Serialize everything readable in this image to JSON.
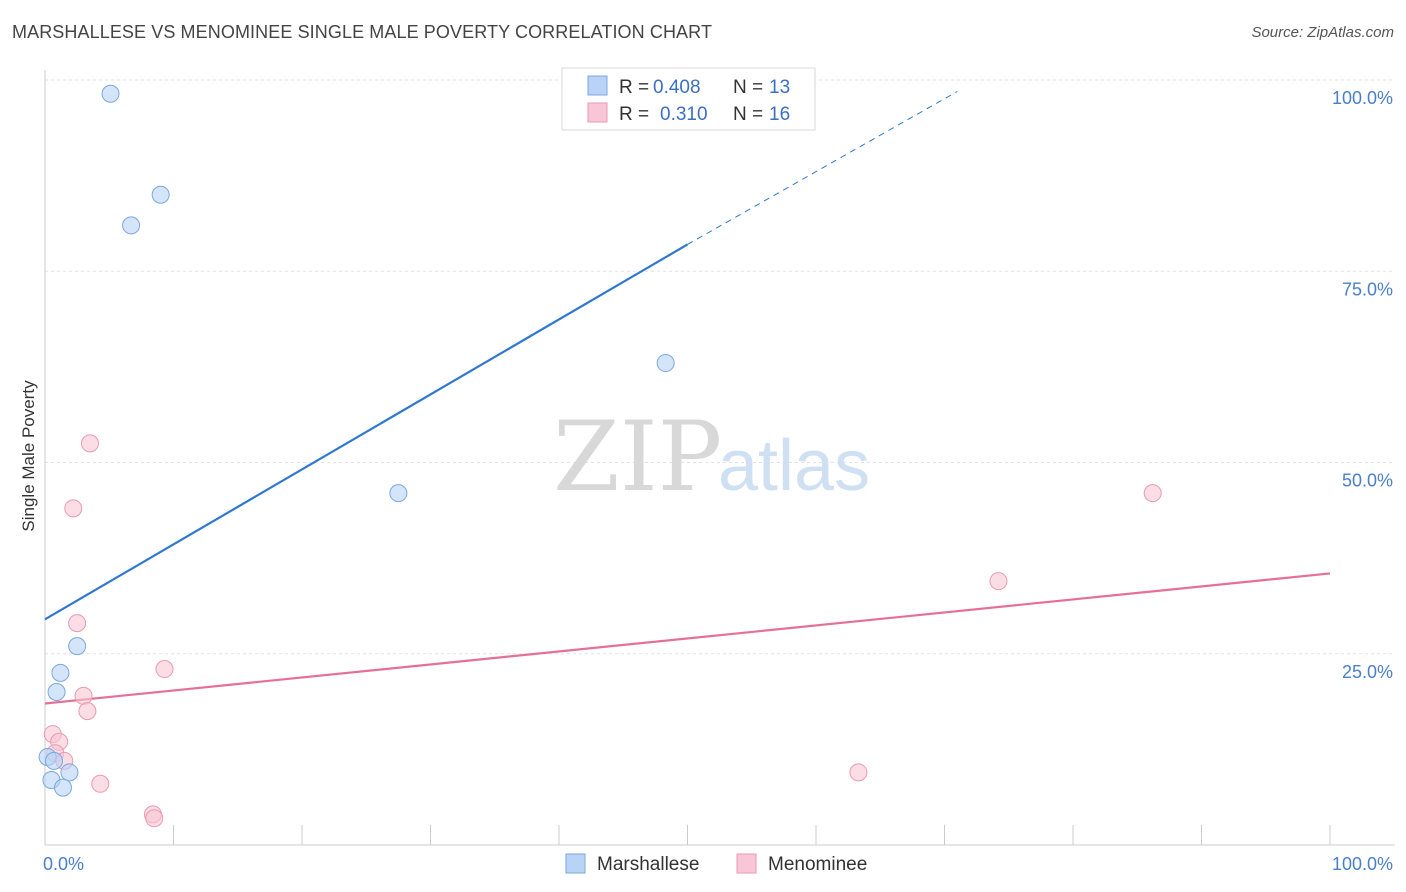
{
  "title": "MARSHALLESE VS MENOMINEE SINGLE MALE POVERTY CORRELATION CHART",
  "source": "Source: ZipAtlas.com",
  "watermark": {
    "zip": "ZIP",
    "atlas": "atlas"
  },
  "colors": {
    "marshallese_fill": "#b8d3f5",
    "marshallese_line": "#2f78d0",
    "menominee_fill": "#f8c6d6",
    "menominee_line": "#e57096",
    "tick": "#4a7fc8",
    "grid": "#e2e2e2"
  },
  "legend": {
    "items": [
      {
        "r_label": "R =",
        "r_value": "0.408",
        "n_label": "N =",
        "n_value": "13"
      },
      {
        "r_label": "R =",
        "r_value": "0.310",
        "n_label": "N =",
        "n_value": "16"
      }
    ]
  },
  "chart_data": {
    "type": "scatter",
    "title": "MARSHALLESE VS MENOMINEE SINGLE MALE POVERTY CORRELATION CHART",
    "xlabel": "",
    "ylabel": "Single Male Poverty",
    "xlim": [
      0,
      100
    ],
    "ylim": [
      0,
      100
    ],
    "x_tick_labels": [
      "0.0%",
      "100.0%"
    ],
    "y_ticks": [
      {
        "value": 25,
        "label": "25.0%"
      },
      {
        "value": 50,
        "label": "50.0%"
      },
      {
        "value": 75,
        "label": "75.0%"
      },
      {
        "value": 100,
        "label": "100.0%"
      }
    ],
    "grid": true,
    "legend_position": "top-center",
    "series": [
      {
        "name": "Marshallese",
        "points": [
          [
            5.1,
            98.2
          ],
          [
            9.0,
            85.0
          ],
          [
            6.7,
            81.0
          ],
          [
            48.3,
            63.0
          ],
          [
            27.5,
            46.0
          ],
          [
            2.5,
            26.0
          ],
          [
            1.2,
            22.5
          ],
          [
            0.9,
            20.0
          ],
          [
            0.2,
            11.5
          ],
          [
            0.7,
            11.0
          ],
          [
            1.9,
            9.5
          ],
          [
            0.5,
            8.5
          ],
          [
            1.4,
            7.5
          ]
        ],
        "trend": {
          "x": [
            0,
            50
          ],
          "y": [
            29.5,
            78.5
          ],
          "extended_to": [
            71,
            98.5
          ]
        }
      },
      {
        "name": "Menominee",
        "points": [
          [
            3.5,
            52.5
          ],
          [
            2.2,
            44.0
          ],
          [
            2.5,
            29.0
          ],
          [
            9.3,
            23.0
          ],
          [
            3.0,
            19.5
          ],
          [
            3.3,
            17.5
          ],
          [
            0.6,
            14.5
          ],
          [
            1.1,
            13.5
          ],
          [
            0.8,
            12.0
          ],
          [
            1.5,
            11.0
          ],
          [
            4.3,
            8.0
          ],
          [
            8.4,
            4.0
          ],
          [
            8.5,
            3.5
          ],
          [
            86.2,
            46.0
          ],
          [
            74.2,
            34.5
          ],
          [
            63.3,
            9.5
          ]
        ],
        "trend": {
          "x": [
            0,
            100
          ],
          "y": [
            18.5,
            35.5
          ]
        }
      }
    ]
  },
  "bottom_legend": [
    {
      "label": "Marshallese"
    },
    {
      "label": "Menominee"
    }
  ]
}
